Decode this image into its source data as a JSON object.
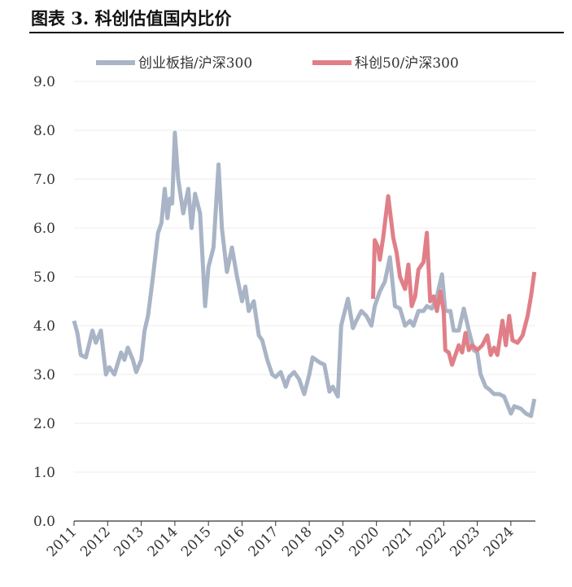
{
  "chart_data": {
    "type": "line",
    "title": "图表 3. 科创估值国内比价",
    "xlim": [
      2011,
      2024.73
    ],
    "xticks": [
      2011,
      2012,
      2013,
      2014,
      2015,
      2016,
      2017,
      2018,
      2019,
      2020,
      2021,
      2022,
      2023,
      2024
    ],
    "ylim": [
      0,
      9
    ],
    "yticks": [
      {
        "value": 0,
        "label": "0.0"
      },
      {
        "value": 1,
        "label": "1.0"
      },
      {
        "value": 2,
        "label": "2.0"
      },
      {
        "value": 3,
        "label": "3.0"
      },
      {
        "value": 4,
        "label": "4.0"
      },
      {
        "value": 5,
        "label": "5.0"
      },
      {
        "value": 6,
        "label": "6.0"
      },
      {
        "value": 7,
        "label": "7.0"
      },
      {
        "value": 8,
        "label": "8.0"
      },
      {
        "value": 9,
        "label": "9.0"
      }
    ],
    "grid": true,
    "legend": "top",
    "series": [
      {
        "name": "创业板指/沪深300",
        "color": "#a9b4c6",
        "x": [
          2011.0,
          2011.1,
          2011.2,
          2011.35,
          2011.55,
          2011.65,
          2011.8,
          2011.95,
          2012.05,
          2012.2,
          2012.4,
          2012.5,
          2012.6,
          2012.75,
          2012.85,
          2013.0,
          2013.1,
          2013.2,
          2013.35,
          2013.5,
          2013.6,
          2013.7,
          2013.78,
          2013.85,
          2013.92,
          2014.0,
          2014.1,
          2014.25,
          2014.4,
          2014.5,
          2014.6,
          2014.75,
          2014.9,
          2015.0,
          2015.15,
          2015.3,
          2015.4,
          2015.55,
          2015.7,
          2015.85,
          2016.0,
          2016.1,
          2016.2,
          2016.35,
          2016.5,
          2016.6,
          2016.75,
          2016.9,
          2017.0,
          2017.15,
          2017.3,
          2017.4,
          2017.55,
          2017.7,
          2017.85,
          2018.0,
          2018.1,
          2018.3,
          2018.45,
          2018.6,
          2018.7,
          2018.85,
          2018.95,
          2019.15,
          2019.3,
          2019.4,
          2019.55,
          2019.7,
          2019.85,
          2019.95,
          2020.1,
          2020.25,
          2020.4,
          2020.55,
          2020.7,
          2020.85,
          2021.0,
          2021.1,
          2021.25,
          2021.4,
          2021.5,
          2021.65,
          2021.8,
          2021.95,
          2022.05,
          2022.2,
          2022.3,
          2022.45,
          2022.6,
          2022.75,
          2022.9,
          2023.0,
          2023.1,
          2023.25,
          2023.35,
          2023.5,
          2023.65,
          2023.8,
          2024.0,
          2024.1,
          2024.3,
          2024.45,
          2024.6,
          2024.7
        ],
        "values": [
          4.1,
          3.85,
          3.4,
          3.35,
          3.9,
          3.65,
          3.9,
          3.0,
          3.15,
          3.0,
          3.45,
          3.3,
          3.55,
          3.3,
          3.05,
          3.3,
          3.9,
          4.2,
          5.0,
          5.9,
          6.1,
          6.8,
          6.2,
          6.6,
          6.5,
          7.95,
          7.0,
          6.3,
          6.8,
          6.0,
          6.7,
          6.3,
          4.4,
          5.2,
          5.6,
          7.3,
          6.0,
          5.1,
          5.6,
          5.0,
          4.5,
          4.8,
          4.3,
          4.5,
          3.8,
          3.7,
          3.3,
          3.0,
          2.95,
          3.05,
          2.75,
          2.95,
          3.05,
          2.9,
          2.6,
          3.0,
          3.35,
          3.25,
          3.2,
          2.65,
          2.75,
          2.55,
          4.0,
          4.55,
          3.95,
          4.1,
          4.3,
          4.2,
          4.0,
          4.4,
          4.7,
          4.9,
          5.4,
          4.4,
          4.35,
          4.0,
          4.1,
          4.0,
          4.3,
          4.3,
          4.4,
          4.35,
          4.6,
          5.05,
          4.3,
          4.3,
          3.9,
          3.9,
          4.35,
          3.9,
          3.5,
          3.45,
          3.0,
          2.75,
          2.7,
          2.6,
          2.6,
          2.55,
          2.2,
          2.35,
          2.3,
          2.2,
          2.15,
          2.5
        ]
      },
      {
        "name": "科创50/沪深300",
        "color": "#e07f88",
        "x": [
          2019.9,
          2019.95,
          2020.05,
          2020.1,
          2020.2,
          2020.35,
          2020.5,
          2020.6,
          2020.7,
          2020.85,
          2020.95,
          2021.05,
          2021.15,
          2021.25,
          2021.4,
          2021.5,
          2021.6,
          2021.7,
          2021.8,
          2021.9,
          2022.0,
          2022.05,
          2022.15,
          2022.25,
          2022.35,
          2022.45,
          2022.55,
          2022.65,
          2022.75,
          2022.85,
          2023.0,
          2023.15,
          2023.3,
          2023.4,
          2023.5,
          2023.6,
          2023.75,
          2023.85,
          2023.95,
          2024.05,
          2024.2,
          2024.35,
          2024.5,
          2024.6,
          2024.7
        ],
        "values": [
          4.55,
          5.75,
          5.6,
          5.35,
          5.8,
          6.65,
          5.8,
          5.5,
          5.0,
          4.75,
          5.25,
          4.4,
          4.6,
          5.15,
          5.3,
          5.9,
          4.5,
          4.6,
          4.3,
          4.7,
          4.3,
          3.5,
          3.45,
          3.2,
          3.4,
          3.6,
          3.45,
          3.85,
          3.5,
          3.6,
          3.5,
          3.6,
          3.8,
          3.4,
          3.55,
          3.4,
          4.1,
          3.6,
          4.2,
          3.7,
          3.65,
          3.8,
          4.2,
          4.6,
          5.1
        ]
      }
    ]
  }
}
